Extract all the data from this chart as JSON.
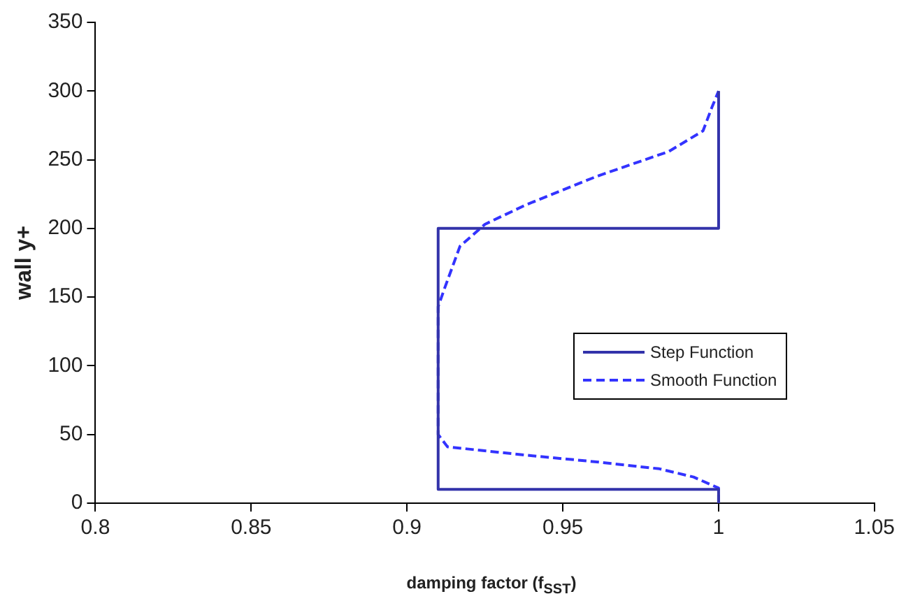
{
  "chart_data": {
    "type": "line",
    "xlabel": "damping factor (f$_{SST}$)",
    "ylabel": "wall y+",
    "xlim": [
      0.8,
      1.05
    ],
    "xticks": [
      0.8,
      0.85,
      0.9,
      0.95,
      1,
      1.05
    ],
    "ylim": [
      0,
      350
    ],
    "yticks": [
      0,
      50,
      100,
      150,
      200,
      250,
      300,
      350
    ],
    "grid": false,
    "legend": "right",
    "marker": "none",
    "series": [
      {
        "name": "Step Function",
        "color": "#3333aa",
        "line_style": "solid",
        "x": [
          1,
          1,
          0.91,
          0.91,
          1,
          1
        ],
        "values": [
          0,
          10,
          10,
          200,
          200,
          300
        ]
      },
      {
        "name": "Smooth Function",
        "color": "#3333ff",
        "line_style": "dashed",
        "x": [
          1,
          1,
          0.992,
          0.981,
          0.961,
          0.938,
          0.913,
          0.91,
          0.91,
          0.912,
          0.917,
          0.925,
          0.938,
          0.961,
          0.984,
          0.995,
          0.998,
          1
        ],
        "values": [
          0,
          11,
          19,
          25,
          30,
          35,
          41,
          50,
          143,
          156,
          187,
          203,
          217,
          238,
          256,
          271,
          289,
          300
        ]
      }
    ]
  }
}
